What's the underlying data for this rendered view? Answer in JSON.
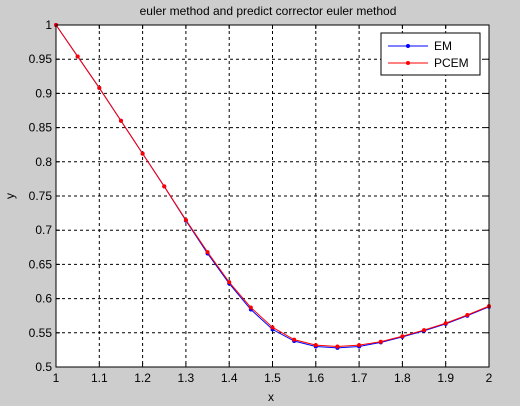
{
  "chart_data": {
    "type": "line",
    "title": "euler method and predict corrector euler method",
    "xlabel": "x",
    "ylabel": "y",
    "xlim": [
      1,
      2
    ],
    "ylim": [
      0.5,
      1
    ],
    "grid": true,
    "legend_position": "top-right",
    "xticks": [
      "1",
      "1.1",
      "1.2",
      "1.3",
      "1.4",
      "1.5",
      "1.6",
      "1.7",
      "1.8",
      "1.9",
      "2"
    ],
    "yticks": [
      "0.5",
      "0.55",
      "0.6",
      "0.65",
      "0.7",
      "0.75",
      "0.8",
      "0.85",
      "0.9",
      "0.95",
      "1"
    ],
    "x": [
      1.0,
      1.05,
      1.1,
      1.15,
      1.2,
      1.25,
      1.3,
      1.35,
      1.4,
      1.45,
      1.5,
      1.55,
      1.6,
      1.65,
      1.7,
      1.75,
      1.8,
      1.85,
      1.9,
      1.95,
      2.0
    ],
    "series": [
      {
        "name": "EM",
        "color": "#0000ff",
        "values": [
          1.0,
          0.954,
          0.908,
          0.86,
          0.812,
          0.764,
          0.714,
          0.666,
          0.622,
          0.584,
          0.555,
          0.538,
          0.53,
          0.528,
          0.53,
          0.536,
          0.544,
          0.553,
          0.563,
          0.575,
          0.588
        ]
      },
      {
        "name": "PCEM",
        "color": "#ff0000",
        "values": [
          1.0,
          0.954,
          0.908,
          0.86,
          0.812,
          0.764,
          0.715,
          0.668,
          0.624,
          0.587,
          0.558,
          0.54,
          0.532,
          0.53,
          0.532,
          0.537,
          0.545,
          0.554,
          0.564,
          0.576,
          0.589
        ]
      }
    ]
  }
}
